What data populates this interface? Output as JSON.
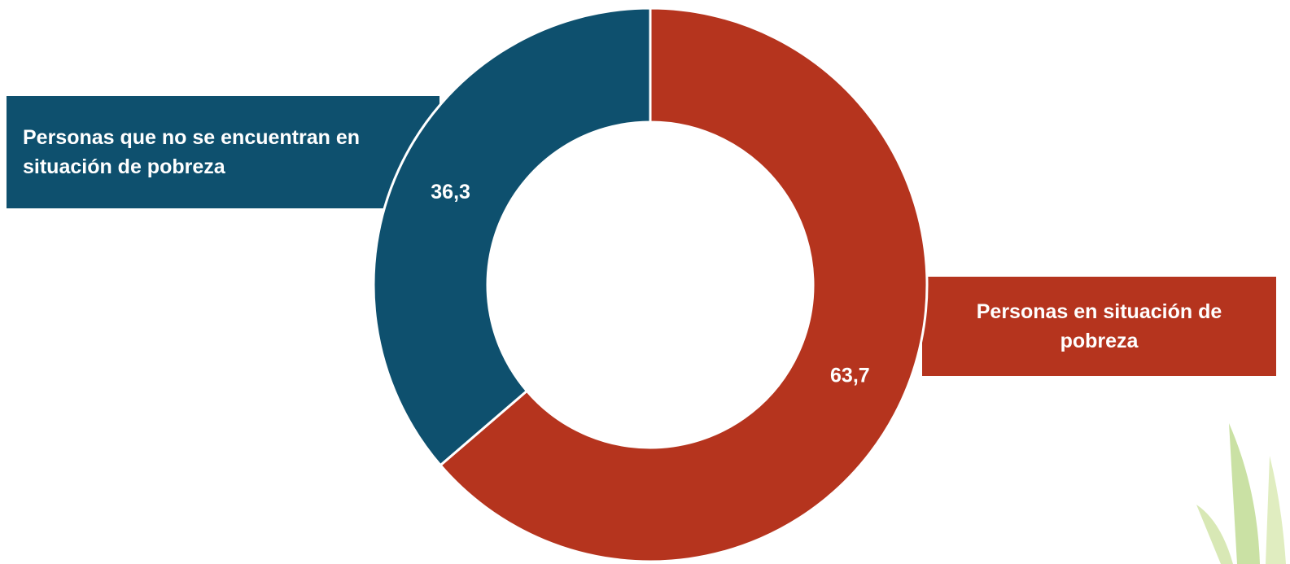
{
  "chart_data": {
    "type": "donut",
    "categories": [
      "Personas en situación de pobreza",
      "Personas que no se encuentran en situación de pobreza"
    ],
    "values": [
      63.7,
      36.3
    ],
    "value_labels": [
      "63,7",
      "36,3"
    ],
    "colors": [
      "#b5341e",
      "#0e506e"
    ]
  }
}
